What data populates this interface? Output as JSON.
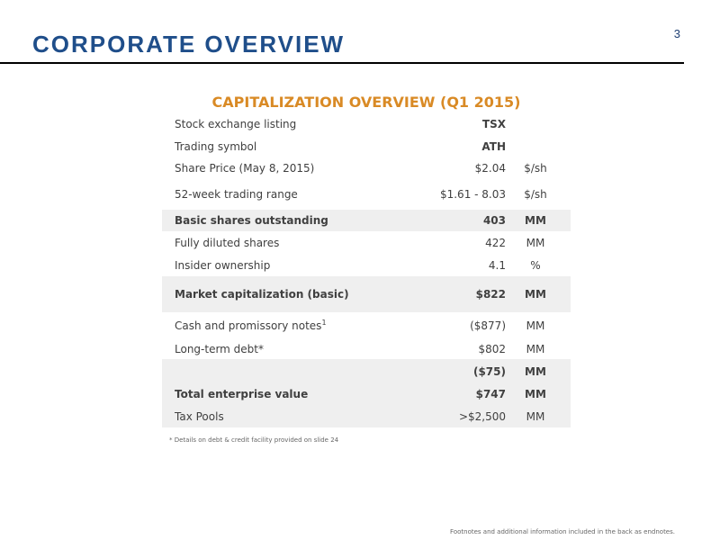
{
  "slide": {
    "page_number": "3",
    "title": "CORPORATE OVERVIEW"
  },
  "table": {
    "title": "CAPITALIZATION OVERVIEW (Q1 2015)",
    "rows": [
      {
        "label": "Stock exchange listing",
        "value": "TSX",
        "unit": ""
      },
      {
        "label": "Trading symbol",
        "value": "ATH",
        "unit": ""
      },
      {
        "label": "Share Price (May 8, 2015)",
        "value": "$2.04",
        "unit": "$/sh"
      },
      {
        "label": "52-week trading range",
        "value": "$1.61 - 8.03",
        "unit": "$/sh"
      },
      {
        "label": "Basic shares outstanding",
        "value": "403",
        "unit": "MM"
      },
      {
        "label": "Fully diluted shares",
        "value": "422",
        "unit": "MM"
      },
      {
        "label": "Insider ownership",
        "value": "4.1",
        "unit": "%"
      },
      {
        "label": "Market capitalization (basic)",
        "value": "$822",
        "unit": "MM"
      },
      {
        "label": "Cash and promissory notes",
        "label_sup": "1",
        "value": "($877)",
        "unit": "MM"
      },
      {
        "label": "Long-term debt*",
        "value": "$802",
        "unit": "MM"
      },
      {
        "label": "",
        "value": "($75)",
        "unit": "MM"
      },
      {
        "label": "Total enterprise value",
        "value": "$747",
        "unit": "MM"
      },
      {
        "label": "Tax Pools",
        "value": ">$2,500",
        "unit": "MM"
      }
    ]
  },
  "footnote": "* Details on debt & credit facility provided on slide 24",
  "bottom_note": "Footnotes and additional information included in the back as endnotes."
}
